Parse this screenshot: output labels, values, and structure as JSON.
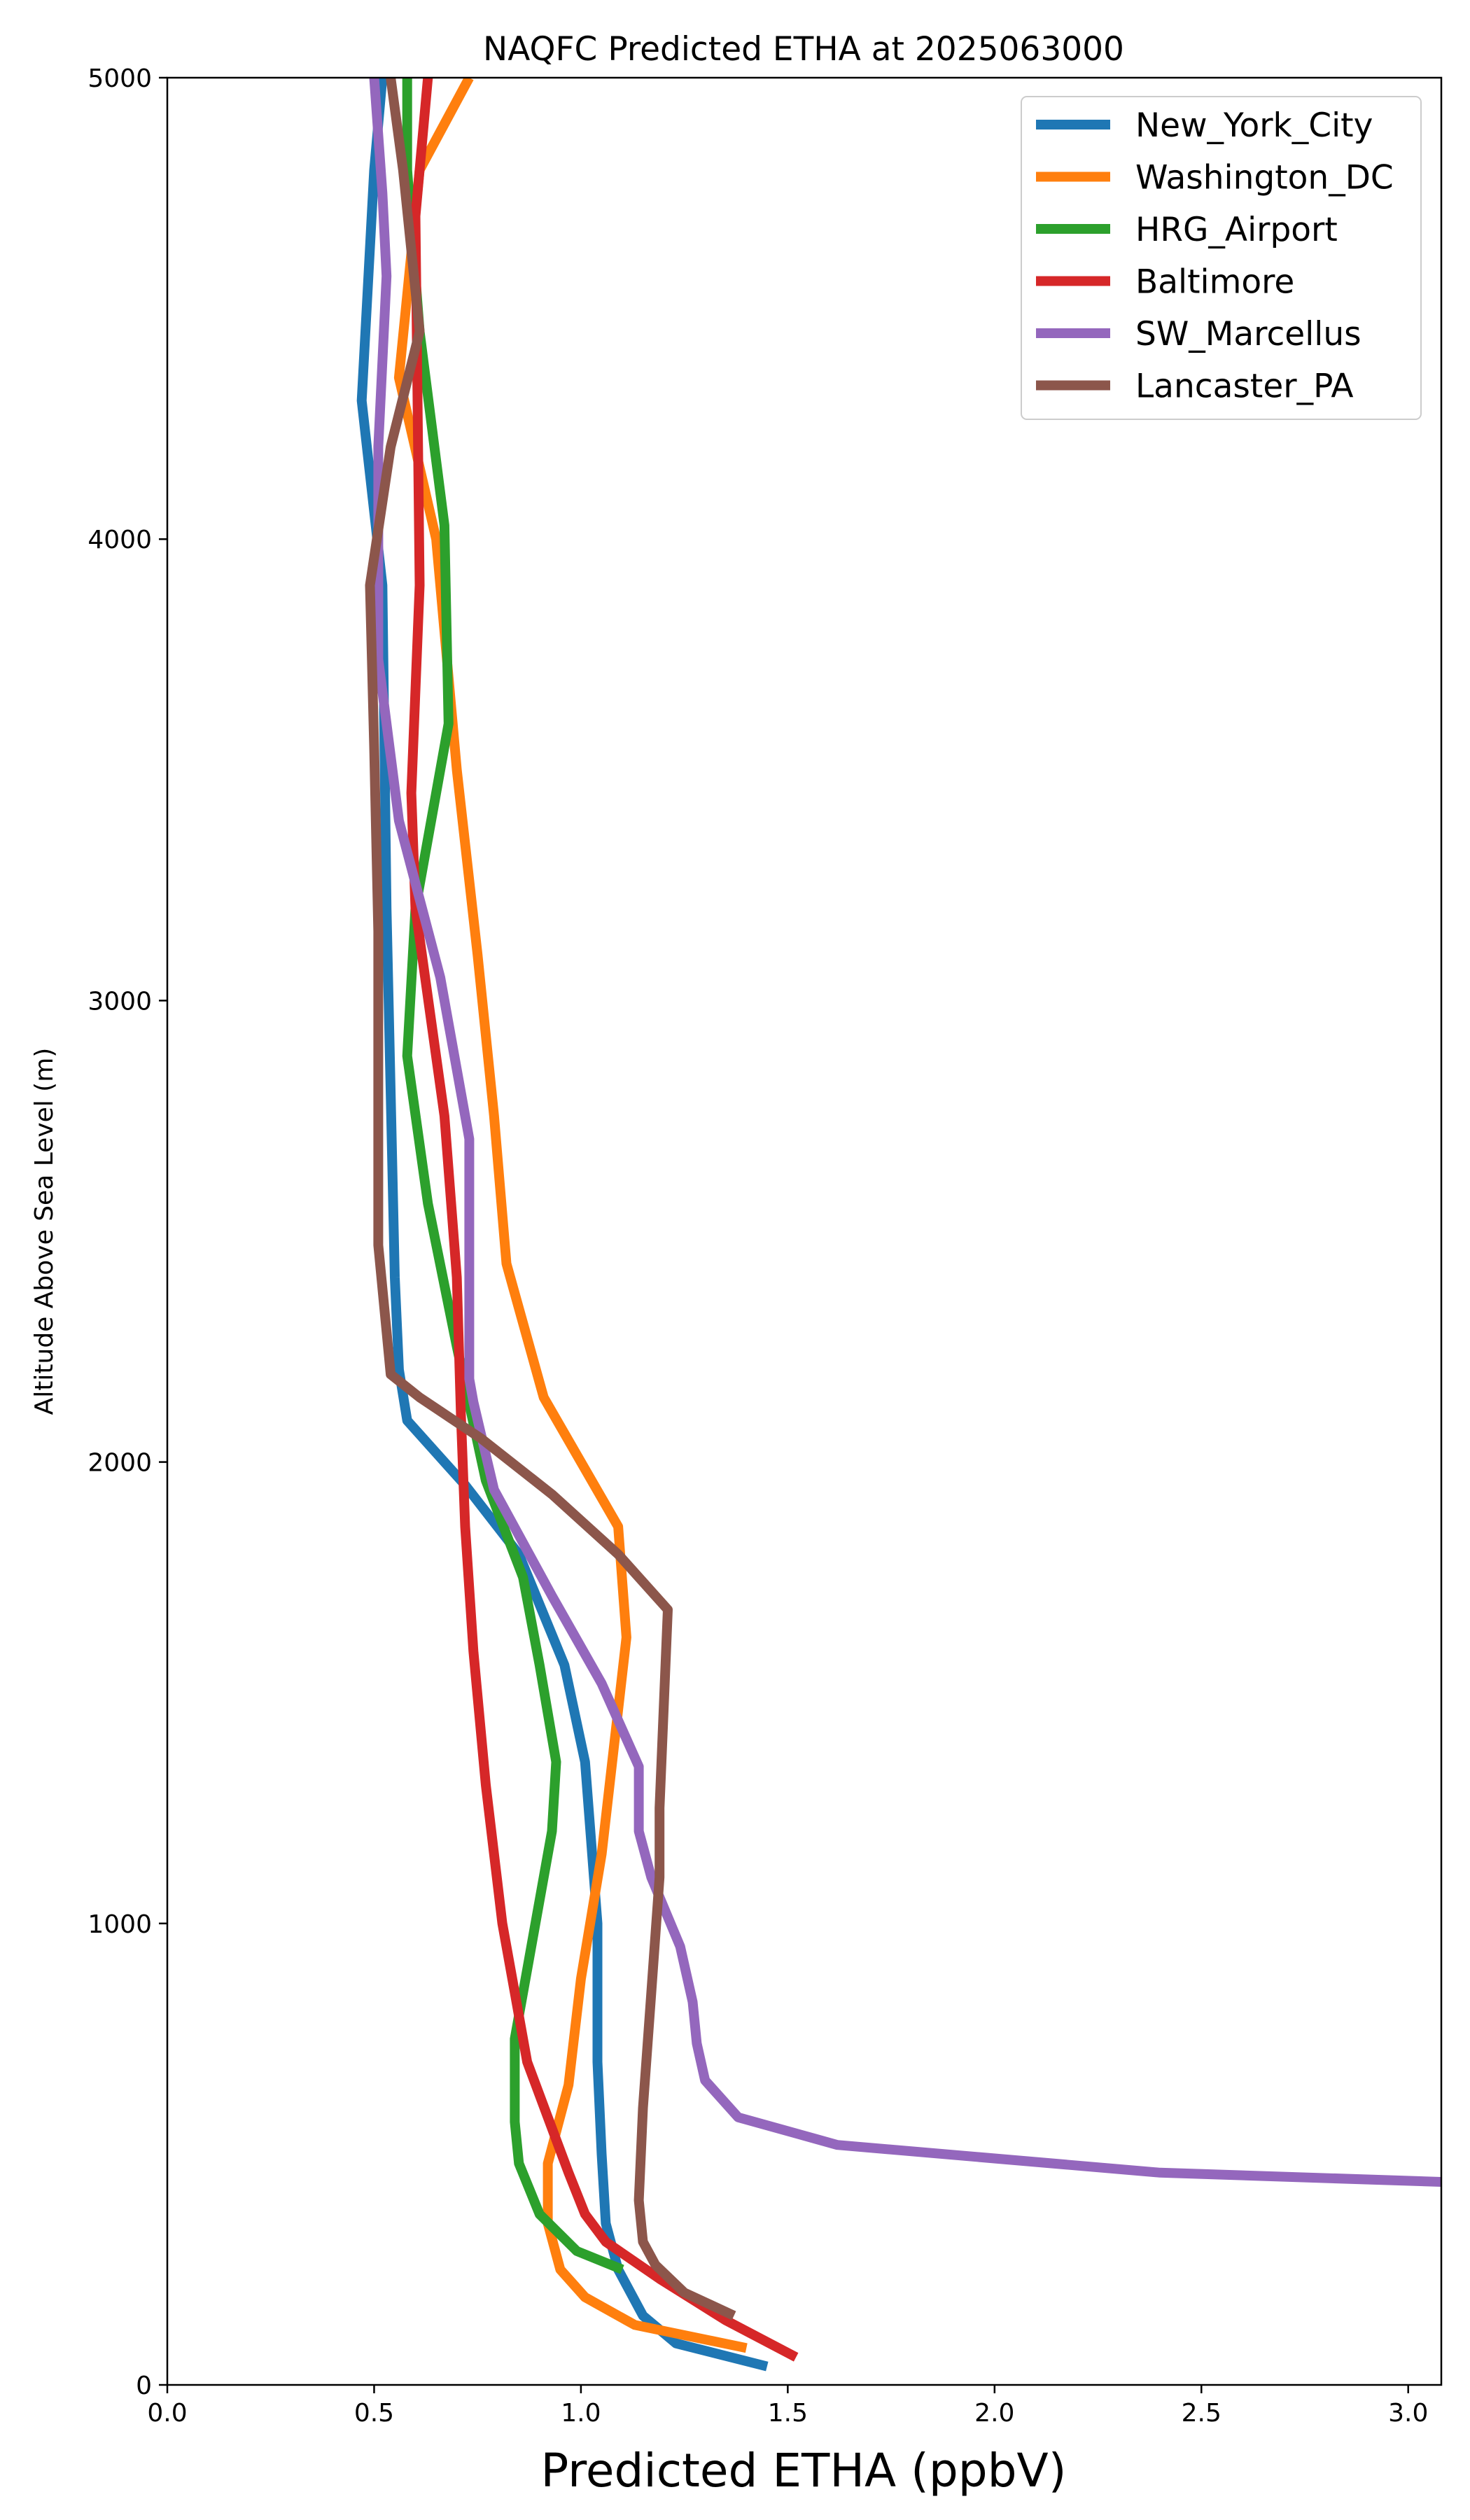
{
  "chart_data": {
    "type": "line",
    "title": "NAQFC Predicted ETHA at 2025063000",
    "xlabel": "Predicted ETHA (ppbV)",
    "ylabel": "Altitude Above Sea Level (m)",
    "xlim": [
      0.0,
      3.08
    ],
    "ylim": [
      0,
      5000
    ],
    "xticks": [
      0.0,
      0.5,
      1.0,
      1.5,
      2.0,
      2.5,
      3.0
    ],
    "xtick_labels": [
      "0.0",
      "0.5",
      "1.0",
      "1.5",
      "2.0",
      "2.5",
      "3.0"
    ],
    "yticks": [
      0,
      1000,
      2000,
      3000,
      4000,
      5000
    ],
    "ytick_labels": [
      "0",
      "1000",
      "2000",
      "3000",
      "4000",
      "5000"
    ],
    "grid": false,
    "legend_position": "top-right",
    "series": [
      {
        "name": "New_York_City",
        "color": "#1f77b4",
        "points": [
          [
            1.45,
            40
          ],
          [
            1.23,
            90
          ],
          [
            1.15,
            150
          ],
          [
            1.09,
            250
          ],
          [
            1.06,
            350
          ],
          [
            1.05,
            500
          ],
          [
            1.04,
            700
          ],
          [
            1.04,
            1000
          ],
          [
            1.01,
            1350
          ],
          [
            0.96,
            1560
          ],
          [
            0.85,
            1800
          ],
          [
            0.72,
            1950
          ],
          [
            0.58,
            2090
          ],
          [
            0.56,
            2200
          ],
          [
            0.55,
            2400
          ],
          [
            0.53,
            3200
          ],
          [
            0.52,
            3900
          ],
          [
            0.47,
            4300
          ],
          [
            0.5,
            4800
          ],
          [
            0.52,
            5000
          ]
        ]
      },
      {
        "name": "Washington_DC",
        "color": "#ff7f0e",
        "points": [
          [
            1.4,
            80
          ],
          [
            1.13,
            130
          ],
          [
            1.01,
            190
          ],
          [
            0.95,
            250
          ],
          [
            0.92,
            350
          ],
          [
            0.92,
            480
          ],
          [
            0.97,
            650
          ],
          [
            1.0,
            880
          ],
          [
            1.05,
            1150
          ],
          [
            1.11,
            1620
          ],
          [
            1.09,
            1860
          ],
          [
            0.91,
            2140
          ],
          [
            0.82,
            2430
          ],
          [
            0.79,
            2750
          ],
          [
            0.75,
            3100
          ],
          [
            0.7,
            3500
          ],
          [
            0.65,
            4000
          ],
          [
            0.56,
            4350
          ],
          [
            0.61,
            4800
          ],
          [
            0.73,
            5000
          ]
        ]
      },
      {
        "name": "HRG_Airport",
        "color": "#2ca02c",
        "points": [
          [
            1.1,
            250
          ],
          [
            0.99,
            290
          ],
          [
            0.9,
            370
          ],
          [
            0.85,
            480
          ],
          [
            0.84,
            570
          ],
          [
            0.84,
            750
          ],
          [
            0.9,
            1050
          ],
          [
            0.93,
            1200
          ],
          [
            0.94,
            1350
          ],
          [
            0.9,
            1560
          ],
          [
            0.86,
            1750
          ],
          [
            0.77,
            1960
          ],
          [
            0.7,
            2250
          ],
          [
            0.63,
            2560
          ],
          [
            0.58,
            2880
          ],
          [
            0.6,
            3200
          ],
          [
            0.68,
            3600
          ],
          [
            0.67,
            4030
          ],
          [
            0.61,
            4450
          ],
          [
            0.58,
            4800
          ],
          [
            0.58,
            5000
          ]
        ]
      },
      {
        "name": "Baltimore",
        "color": "#d62728",
        "points": [
          [
            1.52,
            60
          ],
          [
            1.35,
            140
          ],
          [
            1.19,
            230
          ],
          [
            1.06,
            310
          ],
          [
            1.01,
            370
          ],
          [
            0.97,
            460
          ],
          [
            0.92,
            580
          ],
          [
            0.87,
            700
          ],
          [
            0.84,
            850
          ],
          [
            0.81,
            1000
          ],
          [
            0.77,
            1300
          ],
          [
            0.74,
            1590
          ],
          [
            0.72,
            1860
          ],
          [
            0.71,
            2100
          ],
          [
            0.7,
            2400
          ],
          [
            0.67,
            2750
          ],
          [
            0.6,
            3200
          ],
          [
            0.59,
            3450
          ],
          [
            0.61,
            3900
          ],
          [
            0.6,
            4700
          ],
          [
            0.63,
            5000
          ]
        ]
      },
      {
        "name": "SW_Marcellus",
        "color": "#9467bd",
        "points": [
          [
            3.08,
            440
          ],
          [
            2.4,
            460
          ],
          [
            1.62,
            520
          ],
          [
            1.38,
            580
          ],
          [
            1.3,
            660
          ],
          [
            1.28,
            740
          ],
          [
            1.27,
            830
          ],
          [
            1.24,
            950
          ],
          [
            1.17,
            1100
          ],
          [
            1.14,
            1200
          ],
          [
            1.14,
            1340
          ],
          [
            1.05,
            1520
          ],
          [
            0.93,
            1710
          ],
          [
            0.79,
            1940
          ],
          [
            0.74,
            2130
          ],
          [
            0.73,
            2180
          ],
          [
            0.73,
            2700
          ],
          [
            0.66,
            3050
          ],
          [
            0.56,
            3390
          ],
          [
            0.51,
            3740
          ],
          [
            0.51,
            4200
          ],
          [
            0.53,
            4570
          ],
          [
            0.52,
            4750
          ],
          [
            0.5,
            5000
          ]
        ]
      },
      {
        "name": "Lancaster_PA",
        "color": "#8c564b",
        "points": [
          [
            1.37,
            150
          ],
          [
            1.25,
            200
          ],
          [
            1.18,
            260
          ],
          [
            1.15,
            310
          ],
          [
            1.14,
            400
          ],
          [
            1.15,
            600
          ],
          [
            1.17,
            850
          ],
          [
            1.19,
            1100
          ],
          [
            1.19,
            1250
          ],
          [
            1.21,
            1680
          ],
          [
            1.09,
            1800
          ],
          [
            0.93,
            1930
          ],
          [
            0.76,
            2050
          ],
          [
            0.61,
            2140
          ],
          [
            0.54,
            2190
          ],
          [
            0.51,
            2470
          ],
          [
            0.51,
            3150
          ],
          [
            0.5,
            3550
          ],
          [
            0.49,
            3900
          ],
          [
            0.54,
            4200
          ],
          [
            0.61,
            4450
          ],
          [
            0.57,
            4800
          ],
          [
            0.54,
            5000
          ]
        ]
      }
    ]
  }
}
